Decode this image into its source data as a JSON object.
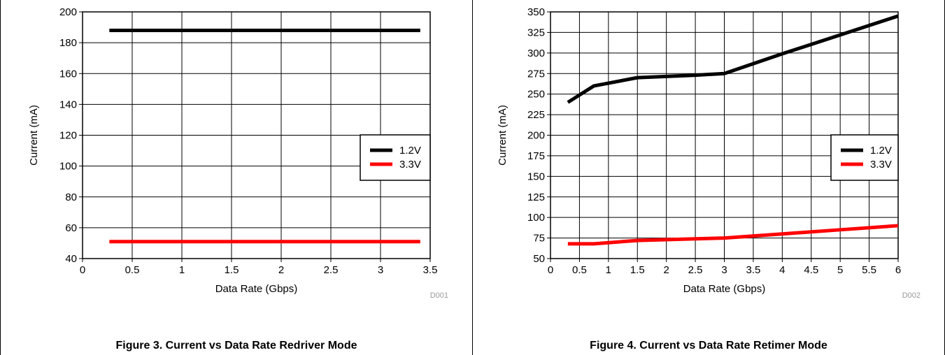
{
  "chart_data": [
    {
      "type": "line",
      "code": "D001",
      "xlabel": "Data Rate (Gbps)",
      "ylabel": "Current (mA)",
      "xlim": [
        0,
        3.5
      ],
      "ylim": [
        40,
        200
      ],
      "xticks": [
        "0",
        "0.5",
        "1",
        "1.5",
        "2",
        "2.5",
        "3",
        "3.5"
      ],
      "yticks": [
        "40",
        "60",
        "80",
        "100",
        "120",
        "140",
        "160",
        "180",
        "200"
      ],
      "grid": true,
      "legend_position": "right",
      "series": [
        {
          "name": "1.2V",
          "color": "#000000",
          "x": [
            0.27,
            3.4
          ],
          "y": [
            188,
            188
          ]
        },
        {
          "name": "3.3V",
          "color": "#ff0000",
          "x": [
            0.27,
            3.4
          ],
          "y": [
            51,
            51
          ]
        }
      ]
    },
    {
      "type": "line",
      "code": "D002",
      "xlabel": "Data Rate (Gbps)",
      "ylabel": "Current (mA)",
      "xlim": [
        0,
        6
      ],
      "ylim": [
        50,
        350
      ],
      "xticks": [
        "0",
        "0.5",
        "1",
        "1.5",
        "2",
        "2.5",
        "3",
        "3.5",
        "4",
        "4.5",
        "5",
        "5.5",
        "6"
      ],
      "yticks": [
        "50",
        "75",
        "100",
        "125",
        "150",
        "175",
        "200",
        "225",
        "250",
        "275",
        "300",
        "325",
        "350"
      ],
      "grid": true,
      "legend_position": "right",
      "series": [
        {
          "name": "1.2V",
          "color": "#000000",
          "x": [
            0.3,
            0.75,
            1.5,
            2.5,
            3.0,
            4.0,
            5.0,
            6.0
          ],
          "y": [
            240,
            260,
            270,
            273,
            275,
            299,
            322,
            345
          ]
        },
        {
          "name": "3.3V",
          "color": "#ff0000",
          "x": [
            0.3,
            0.75,
            1.5,
            2.5,
            3.0,
            4.0,
            5.0,
            6.0
          ],
          "y": [
            68,
            68,
            72,
            74,
            75,
            80,
            85,
            90
          ]
        }
      ]
    }
  ],
  "captions": [
    "Figure 3. Current vs Data Rate Redriver Mode",
    "Figure 4. Current vs Data Rate Retimer Mode"
  ]
}
